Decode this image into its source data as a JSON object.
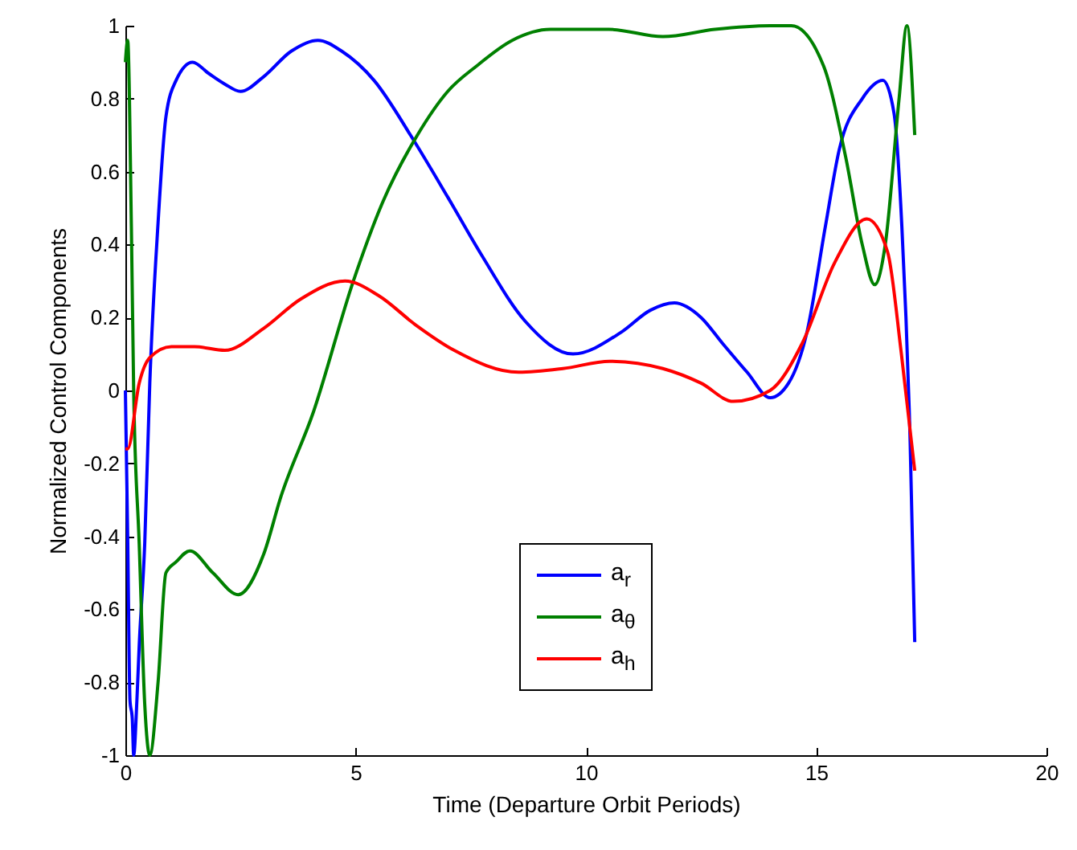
{
  "chart_data": {
    "type": "line",
    "xlabel": "Time (Departure Orbit Periods)",
    "ylabel": "Normalized Control Components",
    "xlim": [
      0,
      20
    ],
    "xticks": [
      0,
      5,
      10,
      15,
      20
    ],
    "ylim": [
      -1,
      1
    ],
    "yticks": [
      -1,
      -0.8,
      -0.6,
      -0.4,
      -0.2,
      0,
      0.2,
      0.4,
      0.6,
      0.8,
      1
    ],
    "legend": "bottom",
    "grid": false,
    "series": [
      {
        "name": "a$_{r}$",
        "color": "#0000ff",
        "x": [
          0,
          0.05,
          0.1,
          0.15,
          0.18,
          0.25,
          0.3,
          0.42,
          0.53,
          0.71,
          0.88,
          1.1,
          1.46,
          1.8,
          2.16,
          2.5,
          3.0,
          3.6,
          4.18,
          4.7,
          5.4,
          6.24,
          7.0,
          7.74,
          8.68,
          9.72,
          10.77,
          11.4,
          11.92,
          12.5,
          12.96,
          13.5,
          14.0,
          14.4,
          14.8,
          15.2,
          15.5,
          16.0,
          16.45,
          16.69,
          16.86,
          17.04,
          17.14
        ],
        "values": [
          0,
          -0.4,
          -0.85,
          -0.9,
          -1,
          -0.85,
          -0.7,
          -0.42,
          0.02,
          0.46,
          0.75,
          0.85,
          0.9,
          0.87,
          0.84,
          0.82,
          0.86,
          0.93,
          0.96,
          0.93,
          0.85,
          0.69,
          0.53,
          0.37,
          0.19,
          0.1,
          0.16,
          0.22,
          0.24,
          0.2,
          0.13,
          0.05,
          -0.02,
          0.02,
          0.16,
          0.45,
          0.66,
          0.8,
          0.85,
          0.76,
          0.45,
          -0.14,
          -0.69
        ]
      },
      {
        "name": "a$_{θ}$",
        "color": "#008000",
        "x": [
          0,
          0.05,
          0.13,
          0.18,
          0.3,
          0.42,
          0.53,
          0.71,
          0.88,
          1.1,
          1.4,
          1.9,
          2.45,
          3.0,
          3.38,
          4.08,
          4.95,
          5.6,
          6.34,
          7.0,
          7.63,
          8.4,
          9.23,
          10.5,
          11.67,
          12.8,
          14.0,
          14.46,
          15.16,
          15.64,
          16.0,
          16.27,
          16.5,
          16.8,
          16.97,
          17.14
        ],
        "values": [
          0.9,
          0.96,
          0.45,
          0,
          -0.42,
          -0.86,
          -1,
          -0.8,
          -0.5,
          -0.47,
          -0.44,
          -0.5,
          -0.56,
          -0.45,
          -0.29,
          -0.06,
          0.3,
          0.52,
          0.7,
          0.82,
          0.89,
          0.96,
          0.99,
          0.99,
          0.97,
          0.99,
          1,
          1,
          0.89,
          0.64,
          0.4,
          0.29,
          0.4,
          0.8,
          1,
          0.7
        ]
      },
      {
        "name": "a$_{h}$",
        "color": "#ff0000",
        "x": [
          0,
          0.05,
          0.3,
          0.53,
          1.0,
          1.5,
          2.16,
          3.0,
          3.8,
          4.77,
          5.5,
          6.3,
          7.14,
          8.54,
          9.5,
          10.52,
          11.67,
          12.5,
          13.2,
          14.0,
          14.7,
          15.4,
          16.1,
          16.55,
          16.85,
          17.14
        ],
        "values": [
          -0.16,
          -0.16,
          0.02,
          0.09,
          0.12,
          0.12,
          0.11,
          0.17,
          0.25,
          0.3,
          0.26,
          0.18,
          0.11,
          0.05,
          0.06,
          0.08,
          0.06,
          0.02,
          -0.03,
          0.0,
          0.13,
          0.35,
          0.47,
          0.38,
          0.1,
          -0.22
        ]
      }
    ]
  }
}
